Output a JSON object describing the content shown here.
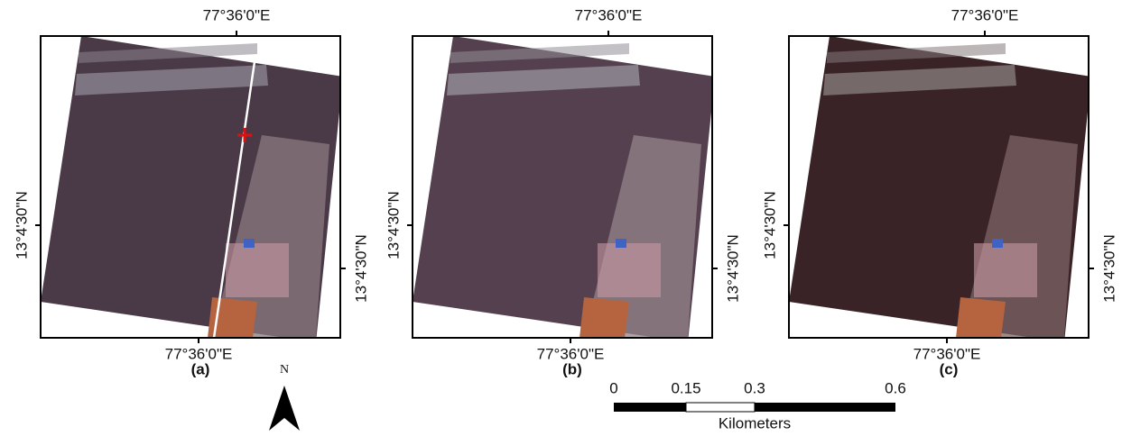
{
  "panels": [
    {
      "label": "(a)",
      "top_lon": "77°36'0\"E",
      "bottom_lon": "77°36'0\"E",
      "left_lat": "13°4'30\"N",
      "right_lat": "13°4'30\"N"
    },
    {
      "label": "(b)",
      "top_lon": "77°36'0\"E",
      "bottom_lon": "77°36'0\"E",
      "left_lat": "13°4'30\"N",
      "right_lat": "13°4'30\"N"
    },
    {
      "label": "(c)",
      "top_lon": "77°36'0\"E",
      "bottom_lon": "77°36'0\"E",
      "left_lat": "13°4'30\"N",
      "right_lat": "13°4'30\"N"
    }
  ],
  "north_arrow": {
    "label": "N"
  },
  "scale_bar": {
    "labels": [
      "0",
      "0.15",
      "0.3",
      "0.6"
    ],
    "unit": "Kilometers"
  }
}
